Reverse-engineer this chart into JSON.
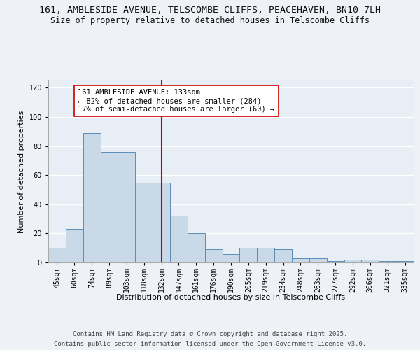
{
  "title_line1": "161, AMBLESIDE AVENUE, TELSCOMBE CLIFFS, PEACEHAVEN, BN10 7LH",
  "title_line2": "Size of property relative to detached houses in Telscombe Cliffs",
  "xlabel": "Distribution of detached houses by size in Telscombe Cliffs",
  "ylabel": "Number of detached properties",
  "categories": [
    "45sqm",
    "60sqm",
    "74sqm",
    "89sqm",
    "103sqm",
    "118sqm",
    "132sqm",
    "147sqm",
    "161sqm",
    "176sqm",
    "190sqm",
    "205sqm",
    "219sqm",
    "234sqm",
    "248sqm",
    "263sqm",
    "277sqm",
    "292sqm",
    "306sqm",
    "321sqm",
    "335sqm"
  ],
  "values": [
    10,
    23,
    89,
    76,
    76,
    55,
    55,
    32,
    20,
    9,
    6,
    10,
    10,
    9,
    3,
    3,
    1,
    2,
    2,
    1,
    1
  ],
  "bar_color": "#c9d9e8",
  "bar_edge_color": "#5b8db8",
  "vline_color": "#cc0000",
  "annotation_text": "161 AMBLESIDE AVENUE: 133sqm\n← 82% of detached houses are smaller (284)\n17% of semi-detached houses are larger (60) →",
  "annotation_box_color": "#ffffff",
  "annotation_box_edge": "#cc0000",
  "ylim": [
    0,
    125
  ],
  "yticks": [
    0,
    20,
    40,
    60,
    80,
    100,
    120
  ],
  "background_color": "#e8eef5",
  "fig_background_color": "#eef2f7",
  "grid_color": "#ffffff",
  "footer_line1": "Contains HM Land Registry data © Crown copyright and database right 2025.",
  "footer_line2": "Contains public sector information licensed under the Open Government Licence v3.0.",
  "title_fontsize": 9.5,
  "subtitle_fontsize": 8.5,
  "axis_label_fontsize": 8,
  "tick_fontsize": 7,
  "annotation_fontsize": 7.5,
  "footer_fontsize": 6.5
}
